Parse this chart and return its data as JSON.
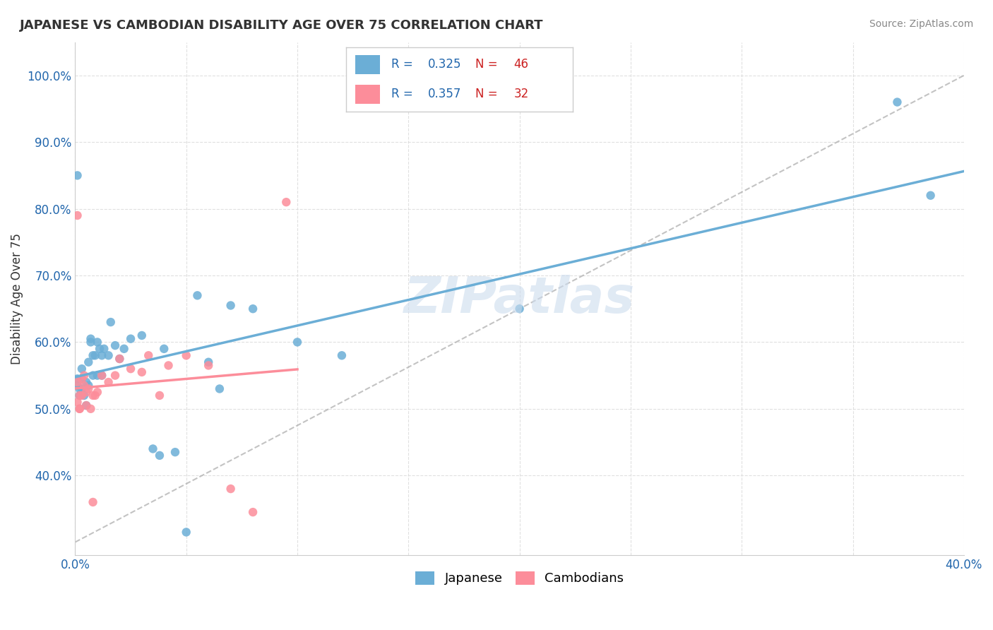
{
  "title": "JAPANESE VS CAMBODIAN DISABILITY AGE OVER 75 CORRELATION CHART",
  "source": "Source: ZipAtlas.com",
  "ylabel": "Disability Age Over 75",
  "xlim": [
    0.0,
    0.4
  ],
  "ylim": [
    0.28,
    1.05
  ],
  "xtick_vals": [
    0.0,
    0.05,
    0.1,
    0.15,
    0.2,
    0.25,
    0.3,
    0.35,
    0.4
  ],
  "xticklabels": [
    "0.0%",
    "",
    "",
    "",
    "",
    "",
    "",
    "",
    "40.0%"
  ],
  "ytick_vals": [
    0.4,
    0.5,
    0.6,
    0.7,
    0.8,
    0.9,
    1.0
  ],
  "yticklabels": [
    "40.0%",
    "50.0%",
    "60.0%",
    "70.0%",
    "80.0%",
    "90.0%",
    "100.0%"
  ],
  "japanese_color": "#6baed6",
  "cambodian_color": "#fc8d9a",
  "japanese_R": "0.325",
  "japanese_N": "46",
  "cambodian_R": "0.357",
  "cambodian_N": "32",
  "legend_R_color": "#2166ac",
  "legend_N_color": "#cc2222",
  "watermark": "ZIPatlas",
  "japanese_x": [
    0.002,
    0.001,
    0.001,
    0.002,
    0.003,
    0.001,
    0.003,
    0.003,
    0.004,
    0.005,
    0.005,
    0.006,
    0.006,
    0.007,
    0.007,
    0.008,
    0.008,
    0.009,
    0.01,
    0.01,
    0.011,
    0.012,
    0.012,
    0.013,
    0.015,
    0.016,
    0.018,
    0.02,
    0.022,
    0.025,
    0.03,
    0.035,
    0.038,
    0.04,
    0.045,
    0.05,
    0.055,
    0.06,
    0.065,
    0.07,
    0.08,
    0.1,
    0.12,
    0.2,
    0.37,
    0.385
  ],
  "japanese_y": [
    0.53,
    0.85,
    0.545,
    0.52,
    0.53,
    0.535,
    0.545,
    0.56,
    0.52,
    0.505,
    0.54,
    0.535,
    0.57,
    0.605,
    0.6,
    0.55,
    0.58,
    0.58,
    0.6,
    0.55,
    0.59,
    0.58,
    0.55,
    0.59,
    0.58,
    0.63,
    0.595,
    0.575,
    0.59,
    0.605,
    0.61,
    0.44,
    0.43,
    0.59,
    0.435,
    0.315,
    0.67,
    0.57,
    0.53,
    0.655,
    0.65,
    0.6,
    0.58,
    0.65,
    0.96,
    0.82
  ],
  "cambodian_x": [
    0.001,
    0.001,
    0.002,
    0.002,
    0.002,
    0.003,
    0.003,
    0.004,
    0.004,
    0.005,
    0.005,
    0.006,
    0.007,
    0.008,
    0.008,
    0.009,
    0.01,
    0.012,
    0.015,
    0.018,
    0.02,
    0.025,
    0.03,
    0.033,
    0.038,
    0.042,
    0.05,
    0.06,
    0.07,
    0.08,
    0.095,
    0.001
  ],
  "cambodian_y": [
    0.51,
    0.79,
    0.5,
    0.52,
    0.5,
    0.545,
    0.52,
    0.55,
    0.535,
    0.505,
    0.525,
    0.53,
    0.5,
    0.52,
    0.36,
    0.52,
    0.525,
    0.55,
    0.54,
    0.55,
    0.575,
    0.56,
    0.555,
    0.58,
    0.52,
    0.565,
    0.58,
    0.565,
    0.38,
    0.345,
    0.81,
    0.54
  ],
  "background_color": "#ffffff",
  "grid_color": "#dddddd",
  "tick_color": "#2166ac",
  "spine_color": "#cccccc"
}
